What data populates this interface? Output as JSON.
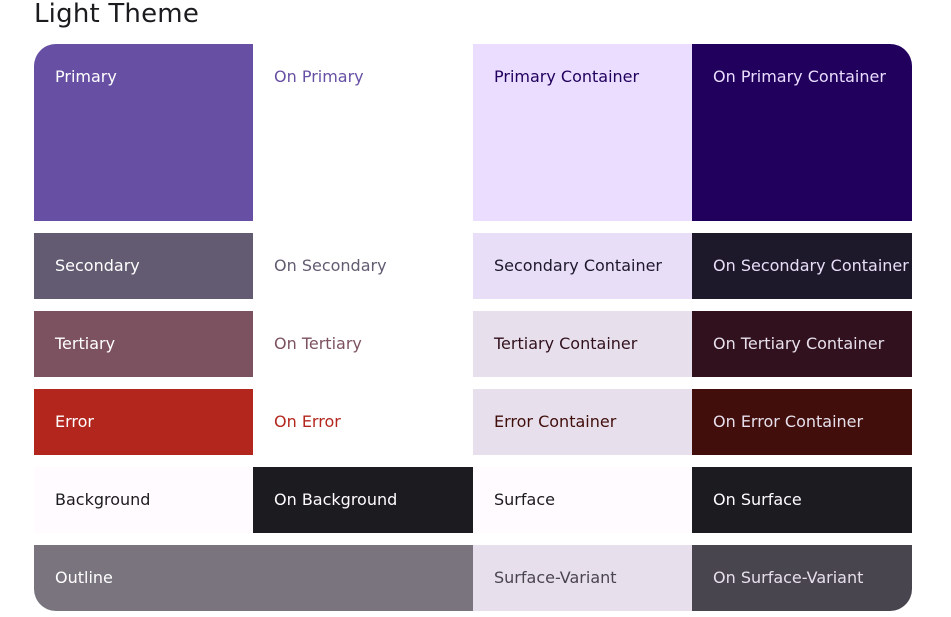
{
  "title": "Light Theme",
  "colors": {
    "primary": "#6750a4",
    "on_primary": "#ffffff",
    "primary_container": "#eaddff",
    "on_primary_container": "#21005d",
    "secondary": "#625b71",
    "on_secondary": "#ffffff",
    "secondary_container": "#e8def8",
    "on_secondary_container": "#1d192b",
    "tertiary": "#7d5260",
    "on_tertiary": "#ffffff",
    "tertiary_container": "#ffd8e4",
    "on_tertiary_container": "#31111d",
    "error": "#b3261e",
    "on_error": "#ffffff",
    "error_container": "#f9dedc",
    "on_error_container": "#410e0b",
    "background": "#fffbfe",
    "on_background": "#1c1b1f",
    "surface": "#fffbfe",
    "on_surface": "#1c1b1f",
    "outline": "#79747e",
    "surface_variant": "#e7e0ec",
    "on_surface_variant": "#49454f"
  },
  "tiles": {
    "primary": "Primary",
    "on_primary": "On Primary",
    "primary_container": "Primary Container",
    "on_primary_container": "On Primary Container",
    "secondary": "Secondary",
    "on_secondary": "On Secondary",
    "secondary_container": "Secondary Container",
    "on_secondary_container": "On Secondary Container",
    "tertiary": "Tertiary",
    "on_tertiary": "On Tertiary",
    "tertiary_container": "Tertiary Container",
    "on_tertiary_container": "On Tertiary Container",
    "error": "Error",
    "on_error": "On Error",
    "error_container": "Error Container",
    "on_error_container": "On Error Container",
    "background": "Background",
    "on_background": "On Background",
    "surface": "Surface",
    "on_surface": "On Surface",
    "outline": "Outline",
    "surface_variant": "Surface-Variant",
    "on_surface_variant": "On Surface-Variant"
  }
}
